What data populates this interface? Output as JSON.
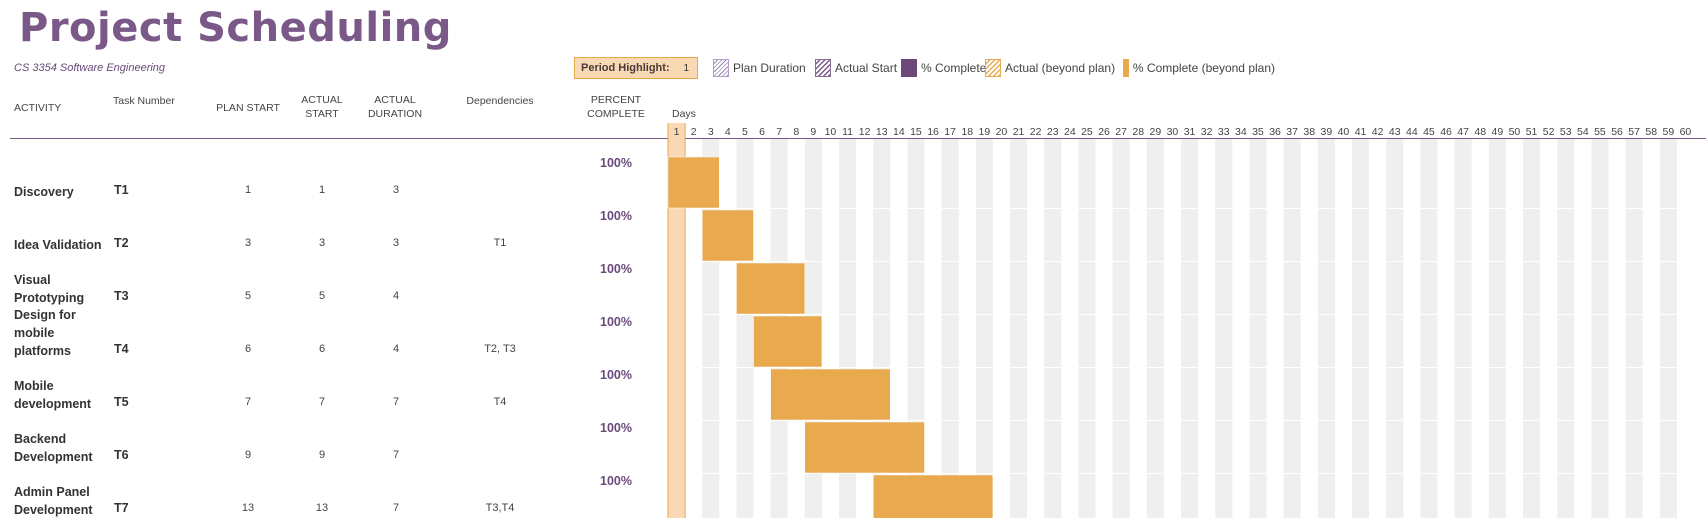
{
  "header": {
    "title": "Project Scheduling",
    "subtitle": "CS 3354 Software Engineering"
  },
  "period": {
    "label": "Period Highlight:",
    "value": "1"
  },
  "legend": {
    "plan_duration": "Plan Duration",
    "actual_start": "Actual Start",
    "percent_complete": "% Complete",
    "actual_beyond": "Actual (beyond plan)",
    "complete_beyond": "% Complete (beyond plan)"
  },
  "columns": {
    "activity": "ACTIVITY",
    "task_number": "Task Number",
    "plan_start": "PLAN START",
    "actual_start_l1": "ACTUAL",
    "actual_start_l2": "START",
    "actual_duration_l1": "ACTUAL",
    "actual_duration_l2": "DURATION",
    "dependencies": "Dependencies",
    "percent_l1": "PERCENT",
    "percent_l2": "COMPLETE",
    "days": "Days"
  },
  "colors": {
    "bar": "#e8a94f",
    "highlight": "#f8d9b3",
    "stripe": "#efefef",
    "accent": "#7a5888"
  },
  "chart_data": {
    "type": "gantt",
    "days": [
      1,
      2,
      3,
      4,
      5,
      6,
      7,
      8,
      9,
      10,
      11,
      12,
      13,
      14,
      15,
      16,
      17,
      18,
      19,
      20,
      21,
      22,
      23,
      24,
      25,
      26,
      27,
      28,
      29,
      30,
      31,
      32,
      33,
      34,
      35,
      36,
      37,
      38,
      39,
      40,
      41,
      42,
      43,
      44,
      45,
      46,
      47,
      48,
      49,
      50,
      51,
      52,
      53,
      54,
      55,
      56,
      57,
      58,
      59,
      60
    ],
    "highlight_day": 1,
    "tasks": [
      {
        "name": "Discovery",
        "task": "T1",
        "plan_start": 1,
        "actual_start": 1,
        "actual_duration": 3,
        "dependencies": "",
        "percent": "100%"
      },
      {
        "name": "Idea Validation",
        "task": "T2",
        "plan_start": 3,
        "actual_start": 3,
        "actual_duration": 3,
        "dependencies": "T1",
        "percent": "100%"
      },
      {
        "name": "Visual Prototyping",
        "task": "T3",
        "plan_start": 5,
        "actual_start": 5,
        "actual_duration": 4,
        "dependencies": "",
        "percent": "100%"
      },
      {
        "name": "Design for mobile platforms",
        "task": "T4",
        "plan_start": 6,
        "actual_start": 6,
        "actual_duration": 4,
        "dependencies": "T2, T3",
        "percent": "100%"
      },
      {
        "name": "Mobile development",
        "task": "T5",
        "plan_start": 7,
        "actual_start": 7,
        "actual_duration": 7,
        "dependencies": "T4",
        "percent": "100%"
      },
      {
        "name": "Backend Development",
        "task": "T6",
        "plan_start": 9,
        "actual_start": 9,
        "actual_duration": 7,
        "dependencies": "",
        "percent": "100%"
      },
      {
        "name": "Admin Panel Development",
        "task": "T7",
        "plan_start": 13,
        "actual_start": 13,
        "actual_duration": 7,
        "dependencies": "T3,T4",
        "percent": "100%"
      }
    ]
  }
}
